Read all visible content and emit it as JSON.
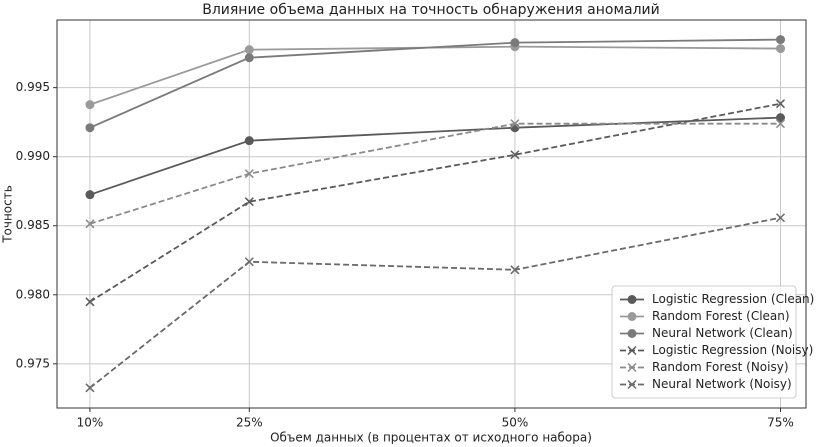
{
  "chart_data": {
    "type": "line",
    "title": "Влияние объема данных на точность обнаружения аномалий",
    "xlabel": "Объем данных (в процентах от исходного набора)",
    "ylabel": "Точность",
    "x": [
      10,
      25,
      50,
      75
    ],
    "xlim": [
      6.9,
      77.4
    ],
    "xticks": [
      {
        "value": 10,
        "label": "10%"
      },
      {
        "value": 25,
        "label": "25%"
      },
      {
        "value": 50,
        "label": "50%"
      },
      {
        "value": 75,
        "label": "75%"
      }
    ],
    "ylim": [
      0.9718,
      0.9999
    ],
    "yticks": [
      0.975,
      {
        "value": 0.98,
        "label": "0.980"
      },
      0.985,
      {
        "value": 0.99,
        "label": "0.990"
      },
      0.995
    ],
    "grid": true,
    "legend": "lower right",
    "series": [
      {
        "name": "Logistic Regression (Clean)",
        "color": "#5a5a5a",
        "linestyle": "solid",
        "marker": "o",
        "values": [
          0.98725,
          0.99116,
          0.9921,
          0.99283
        ]
      },
      {
        "name": "Random Forest (Clean)",
        "color": "#9a9a9a",
        "linestyle": "solid",
        "marker": "o",
        "values": [
          0.99377,
          0.99775,
          0.99797,
          0.99783
        ]
      },
      {
        "name": "Neural Network (Clean)",
        "color": "#7a7a7a",
        "linestyle": "solid",
        "marker": "o",
        "values": [
          0.9921,
          0.99717,
          0.99826,
          0.99848
        ]
      },
      {
        "name": "Logistic Regression (Noisy)",
        "color": "#5a5a5a",
        "linestyle": "dashed",
        "marker": "x",
        "values": [
          0.97949,
          0.98674,
          0.99014,
          0.99384
        ]
      },
      {
        "name": "Random Forest (Noisy)",
        "color": "#8a8a8a",
        "linestyle": "dashed",
        "marker": "x",
        "values": [
          0.98514,
          0.98877,
          0.99239,
          0.99239
        ]
      },
      {
        "name": "Neural Network (Noisy)",
        "color": "#6a6a6a",
        "linestyle": "dashed",
        "marker": "x",
        "values": [
          0.97326,
          0.98239,
          0.98181,
          0.98558
        ]
      }
    ]
  }
}
